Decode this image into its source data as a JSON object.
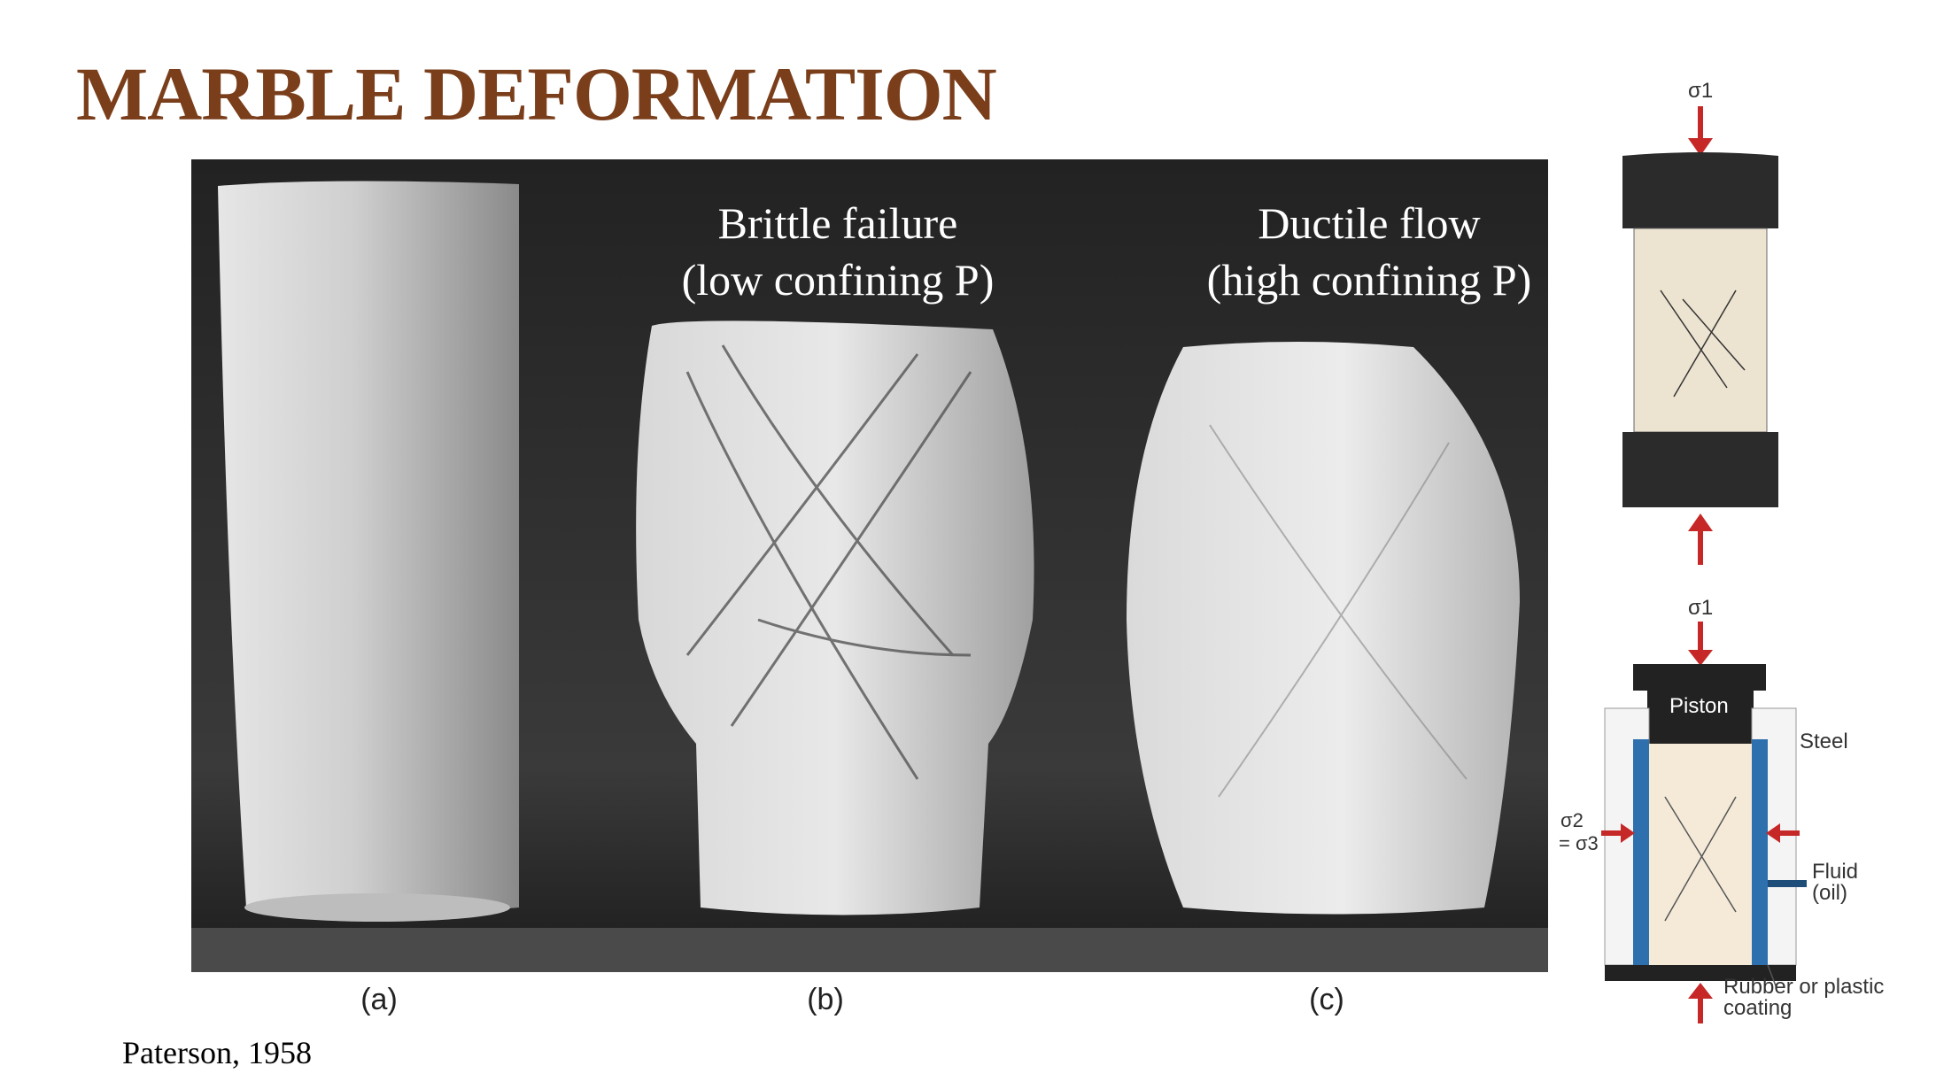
{
  "slide": {
    "title": "MARBLE DEFORMATION",
    "credit": "Paterson, 1958"
  },
  "photo": {
    "caption_b_line1": "Brittle failure",
    "caption_b_line2": "(low confining P)",
    "caption_c_line1": "Ductile flow",
    "caption_c_line2": "(high confining P)",
    "labels": [
      "(a)",
      "(b)",
      "(c)"
    ]
  },
  "diagram_top": {
    "stress_label": "σ1"
  },
  "diagram_bottom": {
    "stress_label": "σ1",
    "piston_label": "Piston",
    "steel_label": "Steel",
    "confining_label_1": "σ2",
    "confining_label_2": "= σ3",
    "fluid_label_1": "Fluid",
    "fluid_label_2": "(oil)",
    "coating_label_1": "Rubber or plastic",
    "coating_label_2": "coating",
    "colors": {
      "arrow": "#c62828",
      "coating": "#2e6fae",
      "sample": "#f5ead8"
    }
  }
}
